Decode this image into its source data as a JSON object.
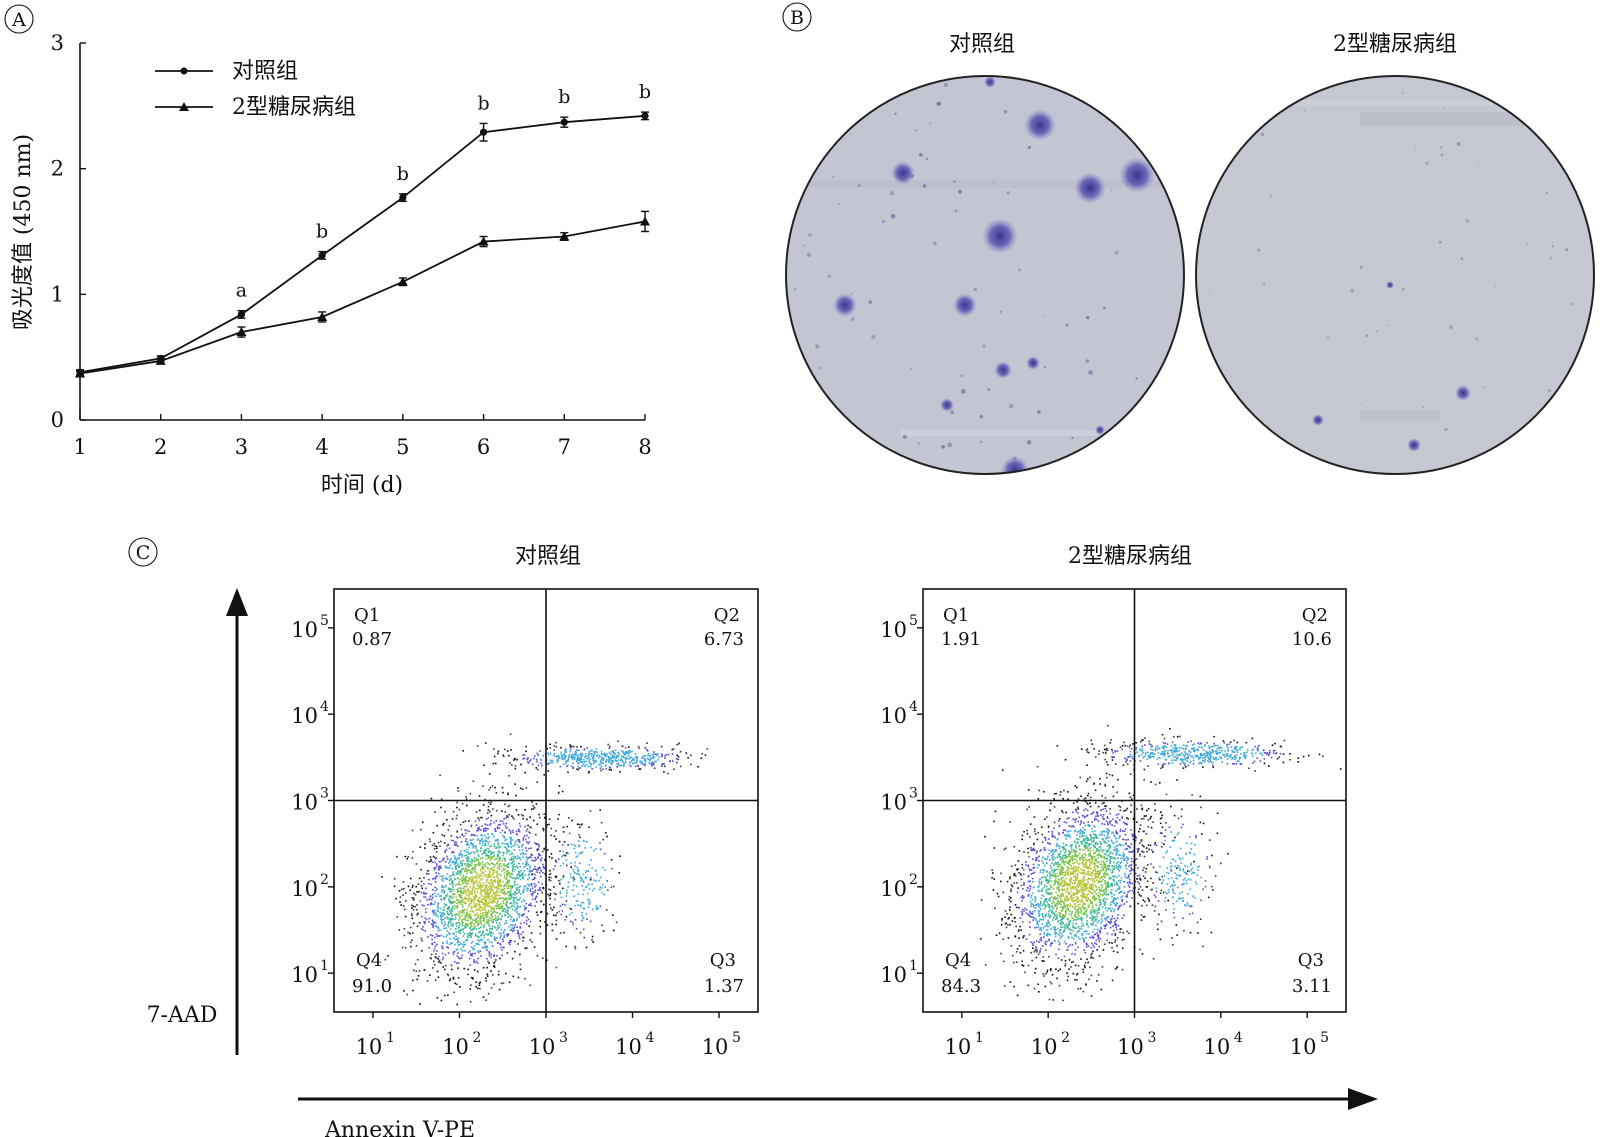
{
  "panels": {
    "a": "A",
    "b": "B",
    "c": "C"
  },
  "chart_data": [
    {
      "type": "line",
      "panel": "A",
      "xlabel": "时间 (d)",
      "ylabel": "吸光度值 (450 nm)",
      "x": [
        1,
        2,
        3,
        4,
        5,
        6,
        7,
        8
      ],
      "xlim": [
        1,
        8
      ],
      "ylim": [
        0,
        3
      ],
      "yticks": [
        0,
        1,
        2,
        3
      ],
      "grid": false,
      "legend_position": "top-left",
      "series": [
        {
          "name": "对照组",
          "marker": "circle",
          "values": [
            0.38,
            0.49,
            0.84,
            1.31,
            1.77,
            2.29,
            2.37,
            2.42
          ],
          "errors": [
            0.02,
            0.02,
            0.03,
            0.03,
            0.03,
            0.07,
            0.04,
            0.03
          ],
          "annotations": [
            "",
            "",
            "a",
            "b",
            "b",
            "b",
            "b",
            "b"
          ]
        },
        {
          "name": "2型糖尿病组",
          "marker": "triangle",
          "values": [
            0.37,
            0.47,
            0.7,
            0.82,
            1.1,
            1.42,
            1.46,
            1.58
          ],
          "errors": [
            0.02,
            0.02,
            0.04,
            0.04,
            0.03,
            0.04,
            0.03,
            0.08
          ]
        }
      ]
    },
    {
      "type": "scatter",
      "panel": "C",
      "title": "对照组",
      "xlabel": "Annexin V-PE",
      "ylabel": "7-AAD",
      "xscale": "log",
      "yscale": "log",
      "gate": [
        1000,
        1000
      ],
      "xtick_exponents": [
        1,
        2,
        3,
        4,
        5
      ],
      "ytick_exponents": [
        1,
        2,
        3,
        4,
        5
      ],
      "quadrants": {
        "Q1": {
          "label": "Q1",
          "value": "0.87"
        },
        "Q2": {
          "label": "Q2",
          "value": "6.73"
        },
        "Q3": {
          "label": "Q3",
          "value": "1.37"
        },
        "Q4": {
          "label": "Q4",
          "value": "91.0"
        }
      },
      "clusters": [
        {
          "name": "live",
          "center_log": [
            2.25,
            1.95
          ],
          "spread": 0.5
        },
        {
          "name": "late-apoptotic",
          "center_log": [
            3.6,
            3.5
          ],
          "spread": 0.2
        },
        {
          "name": "early-apoptotic",
          "center_log": [
            3.4,
            2.1
          ],
          "spread": 0.35
        }
      ]
    },
    {
      "type": "scatter",
      "panel": "C",
      "title": "2型糖尿病组",
      "xlabel": "Annexin V-PE",
      "ylabel": "7-AAD",
      "xscale": "log",
      "yscale": "log",
      "gate": [
        1000,
        1000
      ],
      "xtick_exponents": [
        1,
        2,
        3,
        4,
        5
      ],
      "ytick_exponents": [
        1,
        2,
        3,
        4,
        5
      ],
      "quadrants": {
        "Q1": {
          "label": "Q1",
          "value": "1.91"
        },
        "Q2": {
          "label": "Q2",
          "value": "10.6"
        },
        "Q3": {
          "label": "Q3",
          "value": "3.11"
        },
        "Q4": {
          "label": "Q4",
          "value": "84.3"
        }
      },
      "clusters": [
        {
          "name": "live",
          "center_log": [
            2.35,
            2.05
          ],
          "spread": 0.5
        },
        {
          "name": "late-apoptotic",
          "center_log": [
            3.7,
            3.55
          ],
          "spread": 0.22
        },
        {
          "name": "early-apoptotic",
          "center_log": [
            3.5,
            2.2
          ],
          "spread": 0.35
        }
      ]
    }
  ],
  "colony_images": {
    "left_title": "对照组",
    "right_title": "2型糖尿病组",
    "background_color": "#c4c6d2",
    "colony_color": "#4c4aa8",
    "left_colony_count": 18,
    "right_colony_count": 3
  }
}
